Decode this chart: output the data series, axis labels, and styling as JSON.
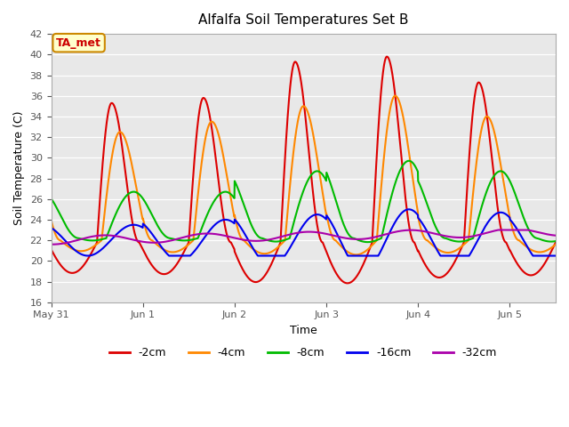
{
  "title": "Alfalfa Soil Temperatures Set B",
  "xlabel": "Time",
  "ylabel": "Soil Temperature (C)",
  "ylim": [
    16,
    42
  ],
  "yticks": [
    16,
    18,
    20,
    22,
    24,
    26,
    28,
    30,
    32,
    34,
    36,
    38,
    40,
    42
  ],
  "fig_bg_color": "#ffffff",
  "plot_bg_color": "#e8e8e8",
  "grid_color": "#ffffff",
  "annotation_text": "TA_met",
  "annotation_bg": "#ffffcc",
  "annotation_border": "#cc8800",
  "annotation_text_color": "#cc0000",
  "series": {
    "-2cm": {
      "color": "#dd0000",
      "lw": 1.5
    },
    "-4cm": {
      "color": "#ff8800",
      "lw": 1.5
    },
    "-8cm": {
      "color": "#00bb00",
      "lw": 1.5
    },
    "-16cm": {
      "color": "#0000ee",
      "lw": 1.5
    },
    "-32cm": {
      "color": "#aa00aa",
      "lw": 1.5
    }
  },
  "legend_labels": [
    "-2cm",
    "-4cm",
    "-8cm",
    "-16cm",
    "-32cm"
  ],
  "legend_colors": [
    "#dd0000",
    "#ff8800",
    "#00bb00",
    "#0000ee",
    "#aa00aa"
  ],
  "xlim": [
    0,
    5.5
  ],
  "xtick_positions": [
    0,
    1,
    2,
    3,
    4,
    5
  ],
  "xtick_labels": [
    "May 31",
    "Jun 1",
    "Jun 2",
    "Jun 3",
    "Jun 4",
    "Jun 5"
  ]
}
